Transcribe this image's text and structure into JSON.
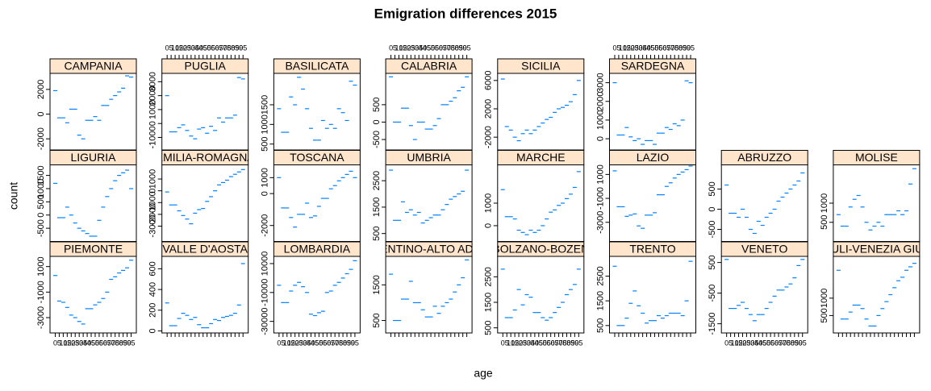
{
  "chart_data": {
    "type": "lattice-dash",
    "title": "Emigration differences 2015",
    "xlabel": "age",
    "ylabel": "count",
    "color": "#0080ff",
    "categories": [
      "0",
      "5",
      "10",
      "15",
      "20",
      "25",
      "30",
      "35",
      "40",
      "45",
      "50",
      "55",
      "60",
      "65",
      "70",
      "75",
      "80",
      "85",
      "90",
      "95"
    ],
    "panels": [
      {
        "name": "CAMPANIA",
        "ylim": [
          -2900,
          3300
        ],
        "yticks": [
          -2000,
          0,
          2000
        ],
        "values": [
          1900,
          -300,
          -300,
          -700,
          400,
          400,
          -1700,
          -2000,
          -500,
          -500,
          -200,
          -500,
          700,
          700,
          1200,
          1500,
          1800,
          2100,
          3100,
          3000
        ]
      },
      {
        "name": "PUGLIA",
        "ylim": [
          -1900,
          3600
        ],
        "yticks": [
          -1000,
          0,
          1000,
          2000,
          3000
        ],
        "values": [
          2000,
          -600,
          -600,
          -300,
          -100,
          -500,
          -900,
          -1100,
          -400,
          -300,
          -700,
          -200,
          -500,
          400,
          100,
          400,
          400,
          600,
          3300,
          3200
        ]
      },
      {
        "name": "BASILICATA",
        "ylim": [
          350,
          2300
        ],
        "yticks": [
          500,
          1000,
          1500
        ],
        "values": [
          1400,
          800,
          800,
          1700,
          1500,
          2200,
          1900,
          1400,
          900,
          600,
          600,
          1100,
          900,
          1000,
          900,
          1400,
          1300,
          1100,
          2100,
          2000
        ]
      },
      {
        "name": "CALABRIA",
        "ylim": [
          -800,
          1400
        ],
        "yticks": [
          -500,
          0,
          500
        ],
        "values": [
          1300,
          0,
          0,
          400,
          400,
          -100,
          -500,
          0,
          0,
          -200,
          -200,
          -100,
          100,
          500,
          500,
          600,
          700,
          900,
          1000,
          1300
        ]
      },
      {
        "name": "SICILIA",
        "ylim": [
          -3800,
          7000
        ],
        "yticks": [
          -2000,
          2000,
          6000
        ],
        "values": [
          6200,
          -500,
          -1000,
          -2000,
          -2500,
          -1500,
          -1000,
          -1500,
          -1000,
          -500,
          0,
          500,
          800,
          1500,
          2000,
          2200,
          2500,
          3000,
          4000,
          6000
        ]
      },
      {
        "name": "SARDEGNA",
        "ylim": [
          -600,
          3500
        ],
        "yticks": [
          0,
          1000,
          2000,
          3000
        ],
        "values": [
          3000,
          200,
          200,
          600,
          100,
          -100,
          0,
          -300,
          -100,
          -100,
          -300,
          300,
          300,
          600,
          500,
          800,
          700,
          1000,
          3100,
          3000
        ]
      },
      {
        "name": "LIGURIA",
        "ylim": [
          -1000,
          1900
        ],
        "yticks": [
          -500,
          0,
          500,
          1000,
          1500
        ],
        "values": [
          1200,
          -100,
          -100,
          300,
          0,
          -300,
          -500,
          -600,
          -700,
          -800,
          -800,
          -200,
          300,
          700,
          1000,
          1300,
          1500,
          1600,
          1700,
          1000
        ]
      },
      {
        "name": "EMILIA-ROMAGNA",
        "ylim": [
          -4300,
          2200
        ],
        "yticks": [
          -3000,
          -2000,
          -1000,
          0,
          1000
        ],
        "values": [
          -100,
          -1200,
          -1200,
          -1700,
          -2100,
          -2400,
          -2800,
          -1900,
          -1600,
          -1500,
          -900,
          -500,
          0,
          500,
          700,
          900,
          1200,
          1400,
          1600,
          1800
        ]
      },
      {
        "name": "TOSCANA",
        "ylim": [
          -3000,
          1800
        ],
        "yticks": [
          -2000,
          0,
          1000
        ],
        "values": [
          1000,
          -900,
          -900,
          -1500,
          -2100,
          -1300,
          -1300,
          -600,
          -1500,
          -1400,
          -800,
          -300,
          -300,
          300,
          500,
          800,
          1000,
          1200,
          1400,
          1000
        ]
      },
      {
        "name": "UMBRIA",
        "ylim": [
          200,
          3100
        ],
        "yticks": [
          500,
          1500,
          2500
        ],
        "values": [
          2900,
          1000,
          1000,
          1700,
          1300,
          1400,
          1200,
          1300,
          900,
          1000,
          1100,
          1200,
          1200,
          1400,
          1600,
          1800,
          1900,
          2000,
          2100,
          2900
        ]
      },
      {
        "name": "MARCHE",
        "ylim": [
          -700,
          2700
        ],
        "yticks": [
          0,
          1000
        ],
        "values": [
          1600,
          400,
          400,
          300,
          -200,
          -300,
          -400,
          -200,
          -300,
          -200,
          0,
          300,
          600,
          700,
          900,
          1000,
          1200,
          1400,
          1700,
          2400
        ]
      },
      {
        "name": "LAZIO",
        "ylim": [
          -4600,
          1800
        ],
        "yticks": [
          -3000,
          -1000,
          1000
        ],
        "values": [
          1300,
          -1700,
          -1700,
          -2500,
          -2400,
          -2300,
          -3300,
          -3500,
          -2400,
          -2400,
          -2200,
          -700,
          -700,
          0,
          300,
          700,
          1000,
          1200,
          1400,
          1700
        ]
      },
      {
        "name": "ABRUZZO",
        "ylim": [
          -800,
          1100
        ],
        "yticks": [
          -500,
          0,
          500
        ],
        "values": [
          600,
          -100,
          -100,
          -200,
          0,
          -200,
          -500,
          -600,
          -300,
          -400,
          -200,
          -100,
          0,
          200,
          300,
          400,
          500,
          600,
          700,
          900
        ]
      },
      {
        "name": "MOLISE",
        "ylim": [
          0,
          2000
        ],
        "yticks": [
          500,
          1000
        ],
        "values": [
          700,
          400,
          400,
          900,
          1100,
          1200,
          900,
          500,
          300,
          400,
          500,
          400,
          700,
          700,
          700,
          800,
          700,
          800,
          1500,
          1900
        ]
      },
      {
        "name": "PIEMONTE",
        "ylim": [
          -4200,
          1800
        ],
        "yticks": [
          -3000,
          -1000,
          1000
        ],
        "values": [
          300,
          -1700,
          -1800,
          -2200,
          -2800,
          -3000,
          -3300,
          -3500,
          -2300,
          -2300,
          -2000,
          -1800,
          -1500,
          -1000,
          0,
          200,
          500,
          700,
          900,
          1500
        ]
      },
      {
        "name": "VALLE D'AOSTA",
        "ylim": [
          -20,
          720
        ],
        "yticks": [
          0,
          200,
          400,
          600
        ],
        "values": [
          270,
          50,
          50,
          120,
          170,
          150,
          110,
          130,
          60,
          30,
          30,
          70,
          110,
          100,
          130,
          140,
          150,
          170,
          250,
          650
        ]
      },
      {
        "name": "LOMBARDIA",
        "ylim": [
          -38000,
          15000
        ],
        "yticks": [
          -30000,
          -10000,
          10000
        ],
        "values": [
          -5000,
          -17000,
          -17000,
          -9000,
          -5000,
          -3000,
          -6000,
          -10000,
          -25000,
          -26000,
          -24000,
          -23000,
          -10000,
          -9000,
          -5000,
          -3000,
          0,
          3000,
          6000,
          12000
        ]
      },
      {
        "name": "TRENTINO-ALTO ADIGE",
        "ylim": [
          150,
          2300
        ],
        "yticks": [
          500,
          1500
        ],
        "values": [
          1800,
          500,
          500,
          1100,
          1100,
          1600,
          1000,
          1000,
          800,
          600,
          600,
          900,
          700,
          900,
          1000,
          1100,
          1300,
          1500,
          1700,
          2200
        ]
      },
      {
        "name": "BOLZANO-BOZEN",
        "ylim": [
          300,
          3300
        ],
        "yticks": [
          500,
          1500,
          2500
        ],
        "values": [
          2800,
          900,
          900,
          1200,
          2000,
          1400,
          1800,
          1700,
          1100,
          1100,
          900,
          800,
          900,
          1100,
          1300,
          1500,
          1800,
          2000,
          2200,
          2800
        ]
      },
      {
        "name": "TRENTO",
        "ylim": [
          200,
          3300
        ],
        "yticks": [
          500,
          1500,
          2500
        ],
        "values": [
          2900,
          500,
          500,
          800,
          1400,
          1900,
          1300,
          1000,
          600,
          700,
          700,
          900,
          800,
          900,
          1000,
          1000,
          1000,
          900,
          1500,
          3100
        ]
      },
      {
        "name": "VENETO",
        "ylim": [
          -1800,
          700
        ],
        "yticks": [
          -1500,
          -500,
          500
        ],
        "values": [
          600,
          -1000,
          -1000,
          -900,
          -800,
          -1000,
          -1200,
          -1400,
          -1200,
          -1200,
          -1000,
          -800,
          -600,
          -400,
          -400,
          -300,
          -200,
          0,
          400,
          600
        ]
      },
      {
        "name": "FRIULI-VENEZIA GIULIA",
        "ylim": [
          0,
          2200
        ],
        "yticks": [
          500,
          1000
        ],
        "values": [
          1800,
          400,
          400,
          600,
          800,
          800,
          700,
          400,
          200,
          200,
          500,
          700,
          900,
          1100,
          1300,
          1500,
          1600,
          1800,
          1900,
          2000
        ]
      }
    ]
  }
}
